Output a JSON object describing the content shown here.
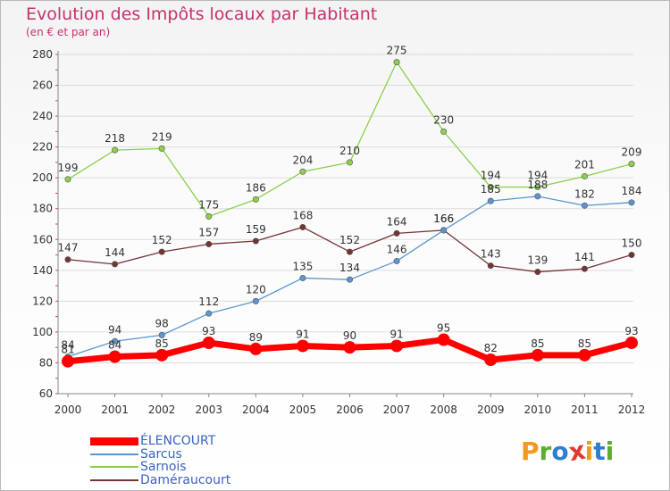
{
  "title": "Evolution des Impôts locaux par Habitant",
  "subtitle": "(en € et par an)",
  "logo_text": "Proxiti",
  "logo_colors": [
    "#f19a1f",
    "#5cae2e",
    "#2f7fd0",
    "#e23a2e",
    "#f19a1f",
    "#2f7fd0",
    "#5cae2e"
  ],
  "chart_data": {
    "type": "line",
    "x": [
      "2000",
      "2001",
      "2002",
      "2003",
      "2004",
      "2005",
      "2006",
      "2007",
      "2008",
      "2009",
      "2010",
      "2011",
      "2012"
    ],
    "ylim": [
      60,
      280
    ],
    "yticks": [
      60,
      80,
      100,
      120,
      140,
      160,
      180,
      200,
      220,
      240,
      260,
      280
    ],
    "grid": "horizontal",
    "legend_position": "bottom-left",
    "series": [
      {
        "name": "ÉLENCOURT",
        "color": "#ff0000",
        "values": [
          81,
          84,
          85,
          93,
          89,
          91,
          90,
          91,
          95,
          82,
          85,
          85,
          93
        ]
      },
      {
        "name": "Sarcus",
        "color": "#5a96cf",
        "values": [
          84,
          94,
          98,
          112,
          120,
          135,
          134,
          146,
          166,
          185,
          188,
          182,
          184
        ]
      },
      {
        "name": "Sarnois",
        "color": "#8cd04c",
        "values": [
          199,
          218,
          219,
          175,
          186,
          204,
          210,
          275,
          230,
          194,
          194,
          201,
          209
        ]
      },
      {
        "name": "Daméraucourt",
        "color": "#743434",
        "values": [
          147,
          144,
          152,
          157,
          159,
          168,
          152,
          164,
          166,
          143,
          139,
          141,
          150
        ]
      }
    ]
  }
}
